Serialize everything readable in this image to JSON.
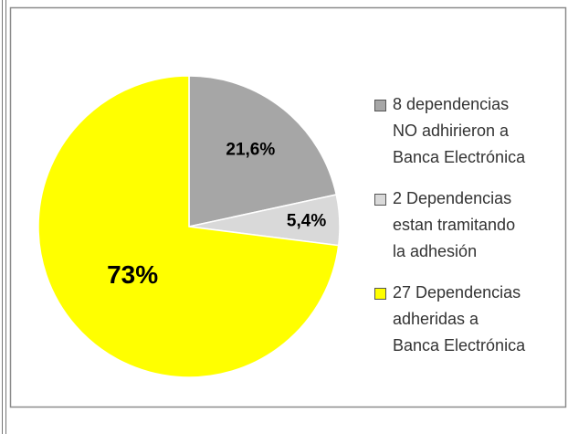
{
  "chart_data": {
    "type": "pie",
    "categories": [
      "8 dependencias NO adhirieron a Banca Electrónica",
      "2 Dependencias estan tramitando la adhesión",
      "27 Dependencias adheridas a Banca Electrónica"
    ],
    "values": [
      21.6,
      5.4,
      73
    ],
    "value_labels": [
      "21,6%",
      "5,4%",
      "73%"
    ],
    "colors": [
      "#a6a6a6",
      "#d9d9d9",
      "#ffff00"
    ],
    "legend": "right"
  }
}
